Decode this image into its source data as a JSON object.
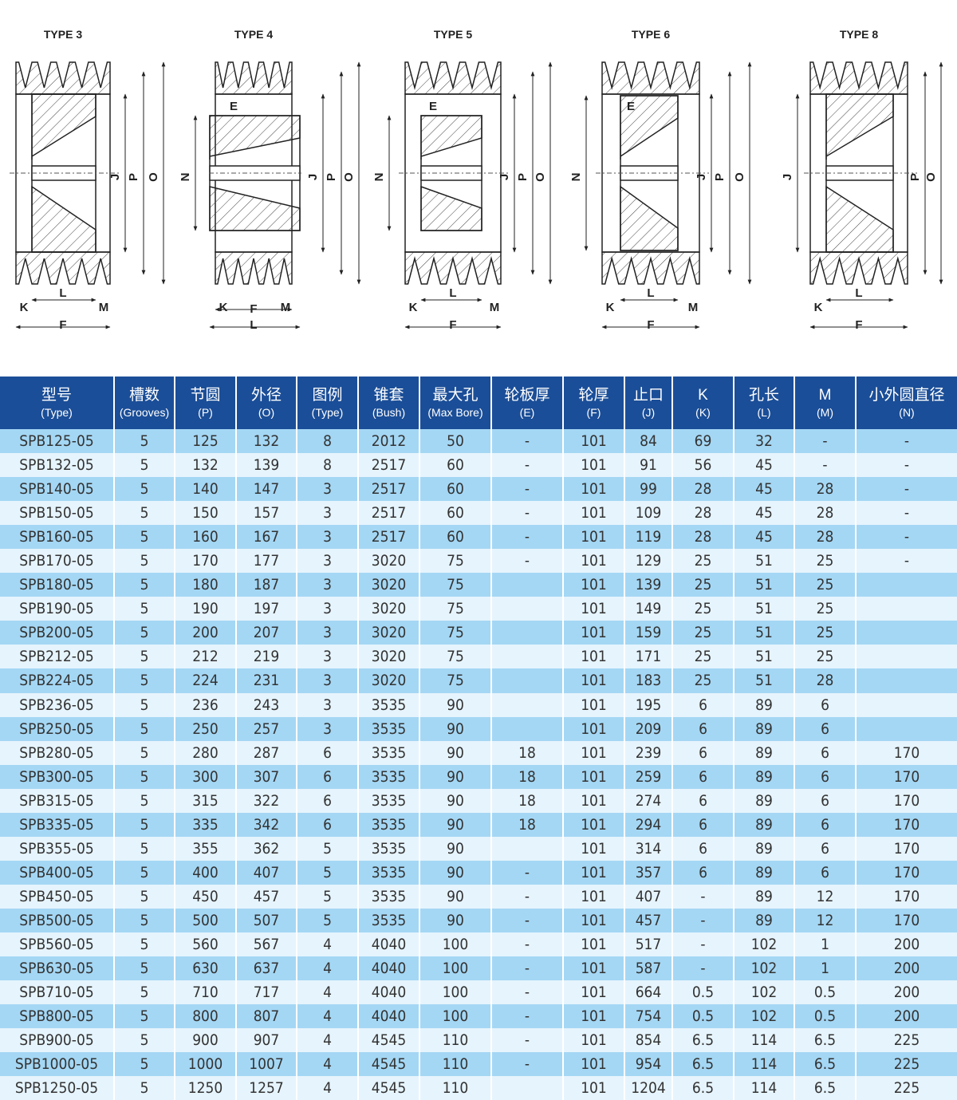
{
  "diagrams": [
    {
      "title": "TYPE 3",
      "labels": {
        "J": "J",
        "P": "P",
        "O": "O",
        "K": "K",
        "L": "L",
        "M": "M",
        "F": "F"
      }
    },
    {
      "title": "TYPE 4",
      "labels": {
        "E": "E",
        "N": "N",
        "J": "J",
        "P": "P",
        "O": "O",
        "K": "K",
        "M": "M",
        "F": "F",
        "L": "L"
      }
    },
    {
      "title": "TYPE 5",
      "labels": {
        "E": "E",
        "N": "N",
        "J": "J",
        "P": "P",
        "O": "O",
        "K": "K",
        "L": "L",
        "M": "M",
        "F": "F"
      }
    },
    {
      "title": "TYPE 6",
      "labels": {
        "E": "E",
        "N": "N",
        "J": "J",
        "P": "P",
        "O": "O",
        "K": "K",
        "L": "L",
        "M": "M",
        "F": "F"
      }
    },
    {
      "title": "TYPE 8",
      "labels": {
        "J": "J",
        "P": "P",
        "O": "O",
        "K": "K",
        "L": "L",
        "F": "F"
      }
    }
  ],
  "table": {
    "headers": [
      {
        "cn": "型号",
        "en": "(Type)"
      },
      {
        "cn": "槽数",
        "en": "(Grooves)"
      },
      {
        "cn": "节圆",
        "en": "(P)"
      },
      {
        "cn": "外径",
        "en": "(O)"
      },
      {
        "cn": "图例",
        "en": "(Type)"
      },
      {
        "cn": "锥套",
        "en": "(Bush)"
      },
      {
        "cn": "最大孔",
        "en": "(Max Bore)"
      },
      {
        "cn": "轮板厚",
        "en": "(E)"
      },
      {
        "cn": "轮厚",
        "en": "(F)"
      },
      {
        "cn": "止口",
        "en": "(J)"
      },
      {
        "cn": "K",
        "en": "(K)"
      },
      {
        "cn": "孔长",
        "en": "(L)"
      },
      {
        "cn": "M",
        "en": "(M)"
      },
      {
        "cn": "小外圆直径",
        "en": "(N)"
      }
    ],
    "rows": [
      [
        "SPB125-05",
        "5",
        "125",
        "132",
        "8",
        "2012",
        "50",
        "-",
        "101",
        "84",
        "69",
        "32",
        "-",
        "-"
      ],
      [
        "SPB132-05",
        "5",
        "132",
        "139",
        "8",
        "2517",
        "60",
        "-",
        "101",
        "91",
        "56",
        "45",
        "-",
        "-"
      ],
      [
        "SPB140-05",
        "5",
        "140",
        "147",
        "3",
        "2517",
        "60",
        "-",
        "101",
        "99",
        "28",
        "45",
        "28",
        "-"
      ],
      [
        "SPB150-05",
        "5",
        "150",
        "157",
        "3",
        "2517",
        "60",
        "-",
        "101",
        "109",
        "28",
        "45",
        "28",
        "-"
      ],
      [
        "SPB160-05",
        "5",
        "160",
        "167",
        "3",
        "2517",
        "60",
        "-",
        "101",
        "119",
        "28",
        "45",
        "28",
        "-"
      ],
      [
        "SPB170-05",
        "5",
        "170",
        "177",
        "3",
        "3020",
        "75",
        "-",
        "101",
        "129",
        "25",
        "51",
        "25",
        "-"
      ],
      [
        "SPB180-05",
        "5",
        "180",
        "187",
        "3",
        "3020",
        "75",
        "",
        "101",
        "139",
        "25",
        "51",
        "25",
        ""
      ],
      [
        "SPB190-05",
        "5",
        "190",
        "197",
        "3",
        "3020",
        "75",
        "",
        "101",
        "149",
        "25",
        "51",
        "25",
        ""
      ],
      [
        "SPB200-05",
        "5",
        "200",
        "207",
        "3",
        "3020",
        "75",
        "",
        "101",
        "159",
        "25",
        "51",
        "25",
        ""
      ],
      [
        "SPB212-05",
        "5",
        "212",
        "219",
        "3",
        "3020",
        "75",
        "",
        "101",
        "171",
        "25",
        "51",
        "25",
        ""
      ],
      [
        "SPB224-05",
        "5",
        "224",
        "231",
        "3",
        "3020",
        "75",
        "",
        "101",
        "183",
        "25",
        "51",
        "28",
        ""
      ],
      [
        "SPB236-05",
        "5",
        "236",
        "243",
        "3",
        "3535",
        "90",
        "",
        "101",
        "195",
        "6",
        "89",
        "6",
        ""
      ],
      [
        "SPB250-05",
        "5",
        "250",
        "257",
        "3",
        "3535",
        "90",
        "",
        "101",
        "209",
        "6",
        "89",
        "6",
        ""
      ],
      [
        "SPB280-05",
        "5",
        "280",
        "287",
        "6",
        "3535",
        "90",
        "18",
        "101",
        "239",
        "6",
        "89",
        "6",
        "170"
      ],
      [
        "SPB300-05",
        "5",
        "300",
        "307",
        "6",
        "3535",
        "90",
        "18",
        "101",
        "259",
        "6",
        "89",
        "6",
        "170"
      ],
      [
        "SPB315-05",
        "5",
        "315",
        "322",
        "6",
        "3535",
        "90",
        "18",
        "101",
        "274",
        "6",
        "89",
        "6",
        "170"
      ],
      [
        "SPB335-05",
        "5",
        "335",
        "342",
        "6",
        "3535",
        "90",
        "18",
        "101",
        "294",
        "6",
        "89",
        "6",
        "170"
      ],
      [
        "SPB355-05",
        "5",
        "355",
        "362",
        "5",
        "3535",
        "90",
        "",
        "101",
        "314",
        "6",
        "89",
        "6",
        "170"
      ],
      [
        "SPB400-05",
        "5",
        "400",
        "407",
        "5",
        "3535",
        "90",
        "-",
        "101",
        "357",
        "6",
        "89",
        "6",
        "170"
      ],
      [
        "SPB450-05",
        "5",
        "450",
        "457",
        "5",
        "3535",
        "90",
        "-",
        "101",
        "407",
        "-",
        "89",
        "12",
        "170"
      ],
      [
        "SPB500-05",
        "5",
        "500",
        "507",
        "5",
        "3535",
        "90",
        "-",
        "101",
        "457",
        "-",
        "89",
        "12",
        "170"
      ],
      [
        "SPB560-05",
        "5",
        "560",
        "567",
        "4",
        "4040",
        "100",
        "-",
        "101",
        "517",
        "-",
        "102",
        "1",
        "200"
      ],
      [
        "SPB630-05",
        "5",
        "630",
        "637",
        "4",
        "4040",
        "100",
        "-",
        "101",
        "587",
        "-",
        "102",
        "1",
        "200"
      ],
      [
        "SPB710-05",
        "5",
        "710",
        "717",
        "4",
        "4040",
        "100",
        "-",
        "101",
        "664",
        "0.5",
        "102",
        "0.5",
        "200"
      ],
      [
        "SPB800-05",
        "5",
        "800",
        "807",
        "4",
        "4040",
        "100",
        "-",
        "101",
        "754",
        "0.5",
        "102",
        "0.5",
        "200"
      ],
      [
        "SPB900-05",
        "5",
        "900",
        "907",
        "4",
        "4545",
        "110",
        "-",
        "101",
        "854",
        "6.5",
        "114",
        "6.5",
        "225"
      ],
      [
        "SPB1000-05",
        "5",
        "1000",
        "1007",
        "4",
        "4545",
        "110",
        "-",
        "101",
        "954",
        "6.5",
        "114",
        "6.5",
        "225"
      ],
      [
        "SPB1250-05",
        "5",
        "1250",
        "1257",
        "4",
        "4545",
        "110",
        "",
        "101",
        "1204",
        "6.5",
        "114",
        "6.5",
        "225"
      ]
    ]
  },
  "colors": {
    "header": "#1b4e98",
    "row_odd": "#a4d7f4",
    "row_even": "#e6f4fd"
  }
}
